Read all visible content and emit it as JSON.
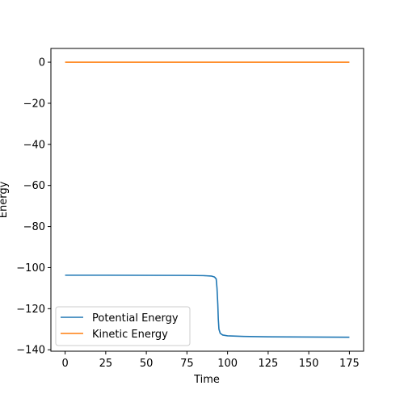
{
  "chart_data": {
    "type": "line",
    "xlabel": "Time",
    "ylabel": "Energy",
    "xlim": [
      -8.75,
      183.75
    ],
    "ylim": [
      -140.7,
      6.7
    ],
    "xticks": [
      0,
      25,
      50,
      75,
      100,
      125,
      150,
      175
    ],
    "yticks": [
      0,
      -20,
      -40,
      -60,
      -80,
      -100,
      -120,
      -140
    ],
    "xtick_labels": [
      "0",
      "25",
      "50",
      "75",
      "100",
      "125",
      "150",
      "175"
    ],
    "ytick_labels": [
      "0",
      "−20",
      "−40",
      "−60",
      "−80",
      "−100",
      "−120",
      "−140"
    ],
    "legend_position": "lower-left",
    "grid": false,
    "series": [
      {
        "name": "Potential Energy",
        "color": "#1f77b4",
        "x": [
          0,
          25,
          50,
          75,
          85,
          90,
          92,
          93,
          93.5,
          94,
          94.3,
          94.7,
          95.5,
          97,
          100,
          110,
          125,
          150,
          175
        ],
        "y": [
          -103.7,
          -103.7,
          -103.75,
          -103.8,
          -103.9,
          -104.1,
          -104.6,
          -105.5,
          -110,
          -118,
          -125,
          -130,
          -132,
          -132.8,
          -133.2,
          -133.5,
          -133.7,
          -133.8,
          -133.9
        ]
      },
      {
        "name": "Kinetic Energy",
        "color": "#ff7f0e",
        "x": [
          0,
          25,
          50,
          75,
          100,
          125,
          150,
          175
        ],
        "y": [
          0,
          0,
          0,
          0,
          0,
          0,
          0,
          0
        ]
      }
    ]
  }
}
